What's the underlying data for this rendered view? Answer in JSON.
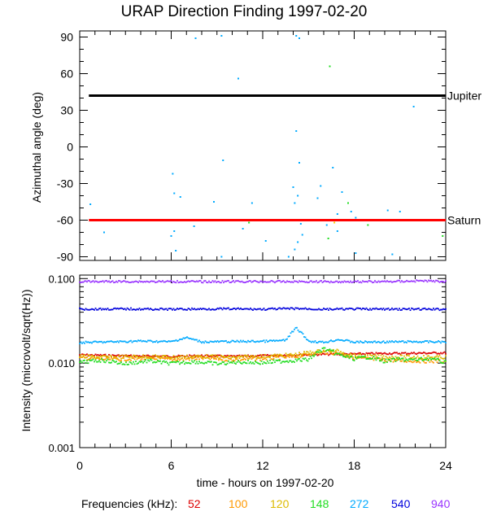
{
  "title": "URAP Direction Finding  1997-02-20",
  "chart_data": [
    {
      "type": "scatter",
      "ylabel": "Azimuthal angle (deg)",
      "ylim": [
        -93,
        95
      ],
      "yticks": [
        "90",
        "60",
        "30",
        "0",
        "-30",
        "-60",
        "-90"
      ],
      "xlim": [
        0,
        24
      ],
      "reference_lines": [
        {
          "name": "Jupiter",
          "y": 42,
          "color": "#000000"
        },
        {
          "name": "Saturn",
          "y": -60,
          "color": "#ff0000"
        }
      ],
      "scatter_points": [
        {
          "x": 7.6,
          "y": 89,
          "color": "#00aaff"
        },
        {
          "x": 9.3,
          "y": 91,
          "color": "#00aaff"
        },
        {
          "x": 14.2,
          "y": 91,
          "color": "#00aaff"
        },
        {
          "x": 14.4,
          "y": 89,
          "color": "#00aaff"
        },
        {
          "x": 16.4,
          "y": 66,
          "color": "#22dd22"
        },
        {
          "x": 10.4,
          "y": 56,
          "color": "#00aaff"
        },
        {
          "x": 21.9,
          "y": 33,
          "color": "#00aaff"
        },
        {
          "x": 14.2,
          "y": 13,
          "color": "#00aaff"
        },
        {
          "x": 9.4,
          "y": -11,
          "color": "#00aaff"
        },
        {
          "x": 14.4,
          "y": -13,
          "color": "#00aaff"
        },
        {
          "x": 6.1,
          "y": -22,
          "color": "#00aaff"
        },
        {
          "x": 16.6,
          "y": -17,
          "color": "#00aaff"
        },
        {
          "x": 14.0,
          "y": -33,
          "color": "#00aaff"
        },
        {
          "x": 14.3,
          "y": -40,
          "color": "#00aaff"
        },
        {
          "x": 14.1,
          "y": -46,
          "color": "#00aaff"
        },
        {
          "x": 15.8,
          "y": -32,
          "color": "#00aaff"
        },
        {
          "x": 15.6,
          "y": -42,
          "color": "#00aaff"
        },
        {
          "x": 17.2,
          "y": -37,
          "color": "#00aaff"
        },
        {
          "x": 16.9,
          "y": -55,
          "color": "#00aaff"
        },
        {
          "x": 17.6,
          "y": -46,
          "color": "#22dd22"
        },
        {
          "x": 17.8,
          "y": -53,
          "color": "#00aaff"
        },
        {
          "x": 18.1,
          "y": -58,
          "color": "#00aaff"
        },
        {
          "x": 20.2,
          "y": -52,
          "color": "#00aaff"
        },
        {
          "x": 21.0,
          "y": -53,
          "color": "#00aaff"
        },
        {
          "x": 6.2,
          "y": -38,
          "color": "#00aaff"
        },
        {
          "x": 6.6,
          "y": -41,
          "color": "#00aaff"
        },
        {
          "x": 8.8,
          "y": -45,
          "color": "#00aaff"
        },
        {
          "x": 11.3,
          "y": -46,
          "color": "#00aaff"
        },
        {
          "x": 0.7,
          "y": -47,
          "color": "#00aaff"
        },
        {
          "x": 1.6,
          "y": -70,
          "color": "#00aaff"
        },
        {
          "x": 7.5,
          "y": -65,
          "color": "#00aaff"
        },
        {
          "x": 11.1,
          "y": -62,
          "color": "#22dd22"
        },
        {
          "x": 10.7,
          "y": -67,
          "color": "#00aaff"
        },
        {
          "x": 14.5,
          "y": -63,
          "color": "#00aaff"
        },
        {
          "x": 14.6,
          "y": -72,
          "color": "#00aaff"
        },
        {
          "x": 14.3,
          "y": -78,
          "color": "#00aaff"
        },
        {
          "x": 14.1,
          "y": -84,
          "color": "#00aaff"
        },
        {
          "x": 16.2,
          "y": -64,
          "color": "#00aaff"
        },
        {
          "x": 16.7,
          "y": -62,
          "color": "#ffcc00"
        },
        {
          "x": 16.9,
          "y": -69,
          "color": "#00aaff"
        },
        {
          "x": 16.3,
          "y": -75,
          "color": "#22dd22"
        },
        {
          "x": 6.2,
          "y": -69,
          "color": "#00aaff"
        },
        {
          "x": 6.0,
          "y": -73,
          "color": "#00aaff"
        },
        {
          "x": 6.3,
          "y": -85,
          "color": "#00aaff"
        },
        {
          "x": 9.3,
          "y": -90,
          "color": "#00aaff"
        },
        {
          "x": 13.7,
          "y": -90,
          "color": "#00aaff"
        },
        {
          "x": 18.1,
          "y": -87,
          "color": "#00aaff"
        },
        {
          "x": 20.5,
          "y": -88,
          "color": "#00aaff"
        },
        {
          "x": 12.2,
          "y": -77,
          "color": "#00aaff"
        },
        {
          "x": 23.8,
          "y": -73,
          "color": "#22dd22"
        },
        {
          "x": 18.9,
          "y": -64,
          "color": "#22dd22"
        }
      ]
    },
    {
      "type": "line",
      "xlabel": "time - hours on 1997-02-20",
      "ylabel": "Intensity (microvolt/sqrt(Hz))",
      "yscale": "log",
      "ylim": [
        0.001,
        0.11
      ],
      "yticks": [
        "0.100",
        "0.010",
        "0.001"
      ],
      "xlim": [
        0,
        24
      ],
      "xticks": [
        "0",
        "6",
        "12",
        "18",
        "24"
      ],
      "legend_label": "Frequencies (kHz):",
      "series": [
        {
          "name": "52",
          "color": "#dd0000",
          "values_x": [
            0,
            2,
            4,
            6,
            8,
            10,
            12,
            14,
            16,
            18,
            20,
            22,
            24
          ],
          "values_y": [
            0.0125,
            0.0123,
            0.0121,
            0.012,
            0.0122,
            0.012,
            0.0122,
            0.0125,
            0.0127,
            0.0128,
            0.013,
            0.0131,
            0.0132
          ]
        },
        {
          "name": "100",
          "color": "#ff9900",
          "values_x": [
            0,
            2,
            4,
            6,
            8,
            10,
            12,
            14,
            16,
            17,
            18,
            20,
            22,
            24
          ],
          "values_y": [
            0.0115,
            0.011,
            0.0113,
            0.011,
            0.0114,
            0.011,
            0.0113,
            0.0118,
            0.0135,
            0.013,
            0.0115,
            0.0108,
            0.0106,
            0.0105
          ]
        },
        {
          "name": "120",
          "color": "#ddbb00",
          "values_x": [
            0,
            2,
            4,
            6,
            8,
            10,
            12,
            14,
            16,
            17,
            18,
            20,
            22,
            24
          ],
          "values_y": [
            0.012,
            0.0117,
            0.012,
            0.0118,
            0.012,
            0.0117,
            0.012,
            0.0125,
            0.014,
            0.0138,
            0.0122,
            0.0118,
            0.0118,
            0.0117
          ]
        },
        {
          "name": "148",
          "color": "#22dd22",
          "values_x": [
            0,
            1.5,
            3,
            4.5,
            6,
            7.5,
            9,
            10.5,
            12,
            13.5,
            15,
            16,
            17,
            18,
            19,
            20,
            21,
            22,
            23,
            24
          ],
          "values_y": [
            0.0102,
            0.0108,
            0.0098,
            0.0106,
            0.0099,
            0.0104,
            0.0098,
            0.0103,
            0.0101,
            0.0106,
            0.011,
            0.0148,
            0.0125,
            0.0112,
            0.0118,
            0.0105,
            0.0111,
            0.0109,
            0.0113,
            0.0101
          ]
        },
        {
          "name": "272",
          "color": "#00aaff",
          "values_x": [
            0,
            2,
            4,
            6,
            7,
            8,
            10,
            12,
            13.5,
            14.2,
            15,
            16,
            17,
            18,
            20,
            22,
            24
          ],
          "values_y": [
            0.0175,
            0.0178,
            0.0182,
            0.0179,
            0.02,
            0.0178,
            0.018,
            0.0181,
            0.0185,
            0.026,
            0.0182,
            0.0176,
            0.019,
            0.0177,
            0.0178,
            0.0179,
            0.0178
          ]
        },
        {
          "name": "540",
          "color": "#0000dd",
          "values_x": [
            0,
            3,
            6,
            9,
            12,
            14.3,
            16,
            18,
            21,
            24
          ],
          "values_y": [
            0.0435,
            0.0437,
            0.0433,
            0.0438,
            0.0434,
            0.0442,
            0.0433,
            0.0436,
            0.0434,
            0.0433
          ]
        },
        {
          "name": "940",
          "color": "#9933ff",
          "values_x": [
            0,
            4,
            8,
            12,
            16,
            20,
            22.5,
            24
          ],
          "values_y": [
            0.092,
            0.0922,
            0.0918,
            0.0921,
            0.0919,
            0.092,
            0.094,
            0.0921
          ]
        }
      ]
    }
  ]
}
